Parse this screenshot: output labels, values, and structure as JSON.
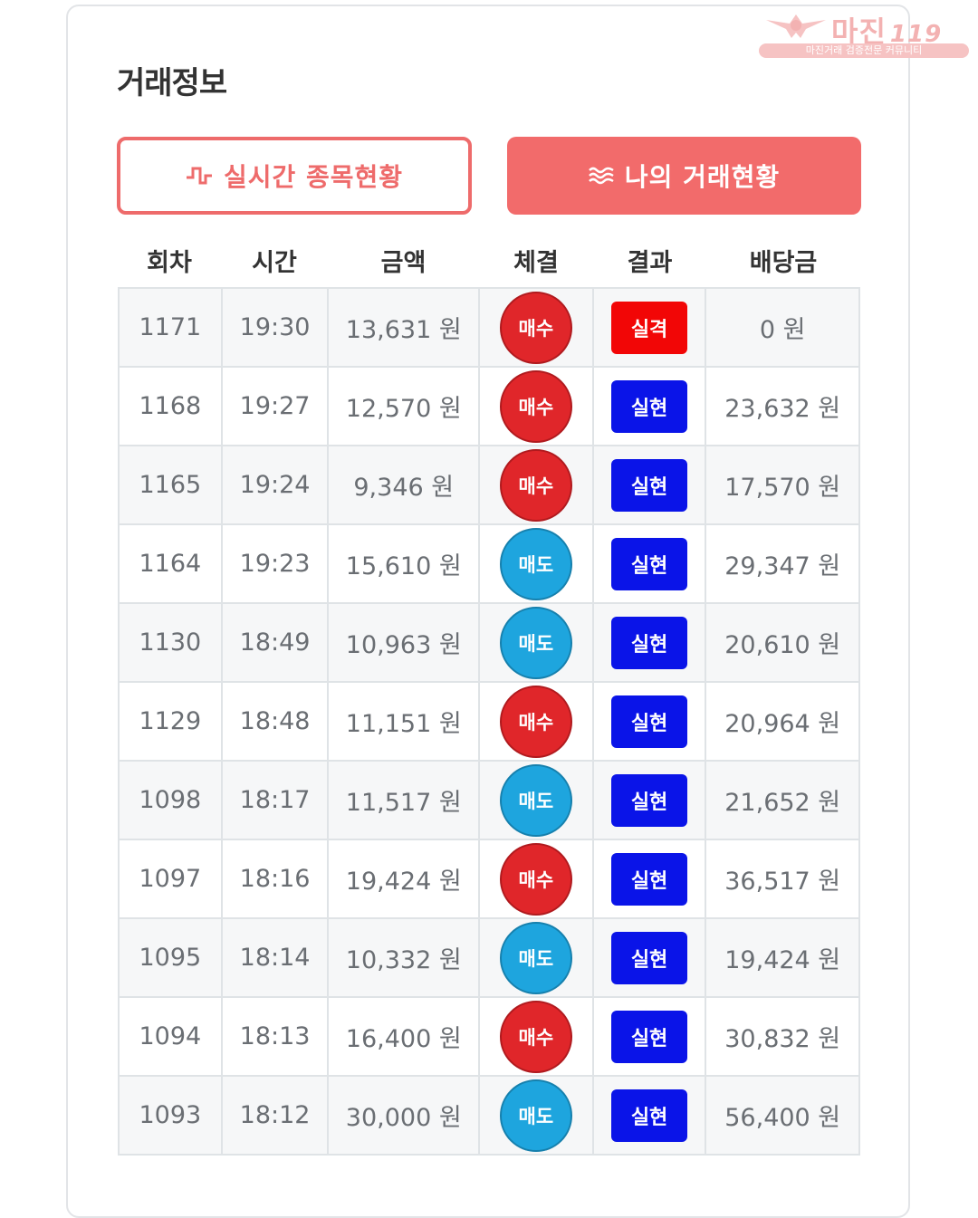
{
  "title": "거래정보",
  "watermark": {
    "brand": "마진",
    "number": "119",
    "tagline": "마진거래 검증전문 커뮤니티"
  },
  "buttons": {
    "live": {
      "label": "실시간 종목현황",
      "icon": "pulse-icon"
    },
    "mine": {
      "label": "나의 거래현황",
      "icon": "waves-icon"
    }
  },
  "colors": {
    "accent": "#f26b6b",
    "buy": "#e0262a",
    "sell": "#1ea5de",
    "win": "#0a14e8",
    "lose": "#f20606"
  },
  "table": {
    "headers": [
      "회차",
      "시간",
      "금액",
      "체결",
      "결과",
      "배당금"
    ],
    "rows": [
      {
        "round": "1171",
        "time": "19:30",
        "amount": "13,631 원",
        "trade": "매수",
        "trade_type": "buy",
        "result": "실격",
        "result_type": "lose",
        "payout": "0 원"
      },
      {
        "round": "1168",
        "time": "19:27",
        "amount": "12,570 원",
        "trade": "매수",
        "trade_type": "buy",
        "result": "실현",
        "result_type": "win",
        "payout": "23,632 원"
      },
      {
        "round": "1165",
        "time": "19:24",
        "amount": "9,346 원",
        "trade": "매수",
        "trade_type": "buy",
        "result": "실현",
        "result_type": "win",
        "payout": "17,570 원"
      },
      {
        "round": "1164",
        "time": "19:23",
        "amount": "15,610 원",
        "trade": "매도",
        "trade_type": "sell",
        "result": "실현",
        "result_type": "win",
        "payout": "29,347 원"
      },
      {
        "round": "1130",
        "time": "18:49",
        "amount": "10,963 원",
        "trade": "매도",
        "trade_type": "sell",
        "result": "실현",
        "result_type": "win",
        "payout": "20,610 원"
      },
      {
        "round": "1129",
        "time": "18:48",
        "amount": "11,151 원",
        "trade": "매수",
        "trade_type": "buy",
        "result": "실현",
        "result_type": "win",
        "payout": "20,964 원"
      },
      {
        "round": "1098",
        "time": "18:17",
        "amount": "11,517 원",
        "trade": "매도",
        "trade_type": "sell",
        "result": "실현",
        "result_type": "win",
        "payout": "21,652 원"
      },
      {
        "round": "1097",
        "time": "18:16",
        "amount": "19,424 원",
        "trade": "매수",
        "trade_type": "buy",
        "result": "실현",
        "result_type": "win",
        "payout": "36,517 원"
      },
      {
        "round": "1095",
        "time": "18:14",
        "amount": "10,332 원",
        "trade": "매도",
        "trade_type": "sell",
        "result": "실현",
        "result_type": "win",
        "payout": "19,424 원"
      },
      {
        "round": "1094",
        "time": "18:13",
        "amount": "16,400 원",
        "trade": "매수",
        "trade_type": "buy",
        "result": "실현",
        "result_type": "win",
        "payout": "30,832 원"
      },
      {
        "round": "1093",
        "time": "18:12",
        "amount": "30,000 원",
        "trade": "매도",
        "trade_type": "sell",
        "result": "실현",
        "result_type": "win",
        "payout": "56,400 원"
      }
    ]
  }
}
